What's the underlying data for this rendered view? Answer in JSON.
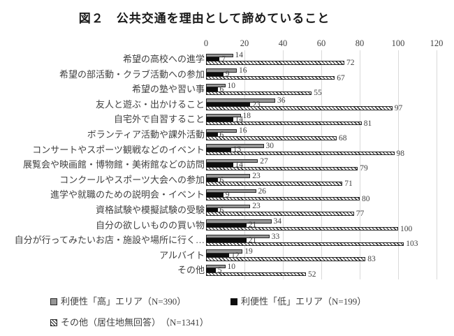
{
  "title": "図２　公共交通を理由として諦めていること",
  "chart_data": {
    "type": "bar",
    "orientation": "horizontal",
    "title": "図２　公共交通を理由として諦めていること",
    "categories": [
      "希望の高校への進学",
      "希望の部活動・クラブ活動への参加",
      "希望の塾や習い事",
      "友人と遊ぶ・出かけること",
      "自宅外で自習すること",
      "ボランティア活動や課外活動",
      "コンサートやスポーツ観戦などのイベント",
      "展覧会や映画館・博物館・美術館などの訪問",
      "コンクールやスポーツ大会への参加",
      "進学や就職のための説明会・イベント",
      "資格試験や模擬試験の受験",
      "自分の欲しいものの買い物",
      "自分が行ってみたいお店・施設や場所に行く…",
      "アルバイト",
      "その他"
    ],
    "series": [
      {
        "name": "利便性「高」エリア（N=390）",
        "pattern": "solid-gray",
        "color": "#969696",
        "values": [
          14,
          16,
          10,
          36,
          18,
          16,
          30,
          27,
          23,
          26,
          23,
          34,
          33,
          19,
          10
        ]
      },
      {
        "name": "利便性「低」エリア（N=199）",
        "pattern": "solid-black",
        "color": "#0d0d0d",
        "values": [
          7,
          9,
          6,
          23,
          14,
          6,
          13,
          14,
          6,
          9,
          6,
          21,
          21,
          12,
          5
        ]
      },
      {
        "name": "その他（居住地無回答）　（N=1341）",
        "pattern": "diagonal-hatch",
        "color": "#ffffff",
        "values": [
          72,
          67,
          55,
          97,
          81,
          68,
          98,
          79,
          71,
          80,
          77,
          100,
          103,
          83,
          52
        ]
      }
    ],
    "xlim": [
      0,
      120
    ],
    "xticks": [
      0,
      20,
      40,
      60,
      80,
      100,
      120
    ],
    "grid": true,
    "data_labels": true,
    "legend_position": "bottom"
  },
  "colors": {
    "grid": "#d9d9d9",
    "text": "#3f3f3f",
    "bar_gray": "#969696",
    "bar_black": "#0d0d0d",
    "hatch_stroke": "#262626",
    "background": "#ffffff"
  }
}
